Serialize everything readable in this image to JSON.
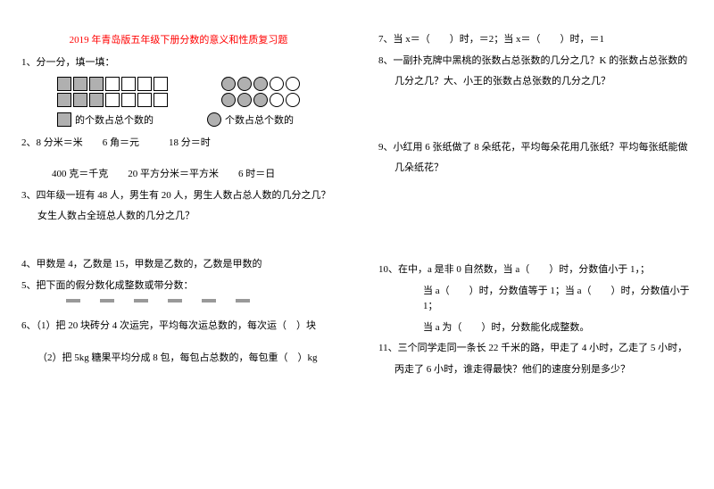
{
  "title": "2019 年青岛版五年级下册分数的意义和性质复习题",
  "left": {
    "q1_head": "1、分一分，填一填：",
    "legend_sq": "的个数占总个数的",
    "legend_ci": "个数占总个数的",
    "q2": "2、8 分米＝米　　6 角＝元　　　18 分＝时",
    "q2b": "400 克＝千克　　20 平方分米＝平方米　　6 时＝日",
    "q3a": "3、四年级一班有 48 人，男生有 20 人，男生人数占总人数的几分之几？",
    "q3b": "女生人数占全班总人数的几分之几？",
    "q4": "4、甲数是 4，乙数是 15，甲数是乙数的，乙数是甲数的",
    "q5": "5、把下面的假分数化成整数或带分数：",
    "q6a": "6、（1）把 20 块砖分 4 次运完，平均每次运总数的，每次运（　）块",
    "q6b": "（2）把 5kg 糖果平均分成 8 包，每包占总数的，每包重（　）kg"
  },
  "right": {
    "q7": "7、当 x＝（　　）时，＝2；当 x＝（　　）时，＝1",
    "q8a": "8、一副扑克牌中黑桃的张数占总张数的几分之几？K 的张数占总张数的",
    "q8b": "几分之几？大、小王的张数占总张数的几分之几？",
    "q9a": "9、小红用 6 张纸做了 8 朵纸花，平均每朵花用几张纸？平均每张纸能做",
    "q9b": "几朵纸花？",
    "q10a": "10、在中，a 是非 0 自然数，当 a（　　）时，分数值小于 1，；",
    "q10b": "当 a（　　）时，分数值等于 1；当 a（　　）时，分数值小于 1；",
    "q10c": "当 a 为（　　）时，分数能化成整数。",
    "q11a": "11、三个同学走同一条长 22 千米的路，甲走了 4 小时，乙走了 5 小时，",
    "q11b": "丙走了 6 小时，谁走得最快？他们的速度分别是多少？"
  },
  "shapes": {
    "squares": [
      [
        "fill",
        "fill",
        "fill",
        "empty",
        "empty",
        "empty",
        "empty"
      ],
      [
        "fill",
        "fill",
        "fill",
        "empty",
        "empty",
        "empty",
        "empty"
      ]
    ],
    "circles": [
      [
        "fill",
        "fill",
        "fill",
        "empty",
        "empty"
      ],
      [
        "fill",
        "fill",
        "fill",
        "empty",
        "empty"
      ]
    ]
  }
}
